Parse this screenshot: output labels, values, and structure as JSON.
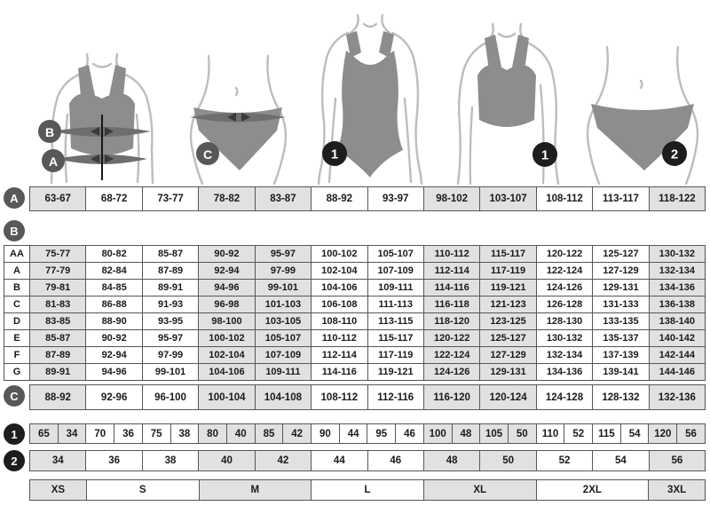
{
  "colors": {
    "cell_shaded": "#e1e1e1",
    "table_border": "#565656",
    "circle_gray": "#58585a",
    "circle_black": "#1d1d1f",
    "garment_gray": "#8d8d8d",
    "body_outline": "#bdbdbd"
  },
  "figures": {
    "bra_measured": {
      "bust_label": "B",
      "underbust_label": "A"
    },
    "panties_measured": {
      "label": "C"
    },
    "swimsuit": {
      "label": "1"
    },
    "bra": {
      "label": "1"
    },
    "panties": {
      "label": "2"
    }
  },
  "row_a": {
    "label": "A",
    "cells": [
      "63-67",
      "68-72",
      "73-77",
      "78-82",
      "83-87",
      "88-92",
      "93-97",
      "98-102",
      "103-107",
      "108-112",
      "113-117",
      "118-122"
    ]
  },
  "section_b": {
    "label": "B",
    "rows": [
      {
        "label": "AA",
        "cells": [
          "75-77",
          "80-82",
          "85-87",
          "90-92",
          "95-97",
          "100-102",
          "105-107",
          "110-112",
          "115-117",
          "120-122",
          "125-127",
          "130-132"
        ]
      },
      {
        "label": "A",
        "cells": [
          "77-79",
          "82-84",
          "87-89",
          "92-94",
          "97-99",
          "102-104",
          "107-109",
          "112-114",
          "117-119",
          "122-124",
          "127-129",
          "132-134"
        ]
      },
      {
        "label": "B",
        "cells": [
          "79-81",
          "84-85",
          "89-91",
          "94-96",
          "99-101",
          "104-106",
          "109-111",
          "114-116",
          "119-121",
          "124-126",
          "129-131",
          "134-136"
        ]
      },
      {
        "label": "C",
        "cells": [
          "81-83",
          "86-88",
          "91-93",
          "96-98",
          "101-103",
          "106-108",
          "111-113",
          "116-118",
          "121-123",
          "126-128",
          "131-133",
          "136-138"
        ]
      },
      {
        "label": "D",
        "cells": [
          "83-85",
          "88-90",
          "93-95",
          "98-100",
          "103-105",
          "108-110",
          "113-115",
          "118-120",
          "123-125",
          "128-130",
          "133-135",
          "138-140"
        ]
      },
      {
        "label": "E",
        "cells": [
          "85-87",
          "90-92",
          "95-97",
          "100-102",
          "105-107",
          "110-112",
          "115-117",
          "120-122",
          "125-127",
          "130-132",
          "135-137",
          "140-142"
        ]
      },
      {
        "label": "F",
        "cells": [
          "87-89",
          "92-94",
          "97-99",
          "102-104",
          "107-109",
          "112-114",
          "117-119",
          "122-124",
          "127-129",
          "132-134",
          "137-139",
          "142-144"
        ]
      },
      {
        "label": "G",
        "cells": [
          "89-91",
          "94-96",
          "99-101",
          "104-106",
          "109-111",
          "114-116",
          "119-121",
          "124-126",
          "129-131",
          "134-136",
          "139-141",
          "144-146"
        ]
      }
    ]
  },
  "row_c": {
    "label": "C",
    "cells": [
      "88-92",
      "92-96",
      "96-100",
      "100-104",
      "104-108",
      "108-112",
      "112-116",
      "116-120",
      "120-124",
      "124-128",
      "128-132",
      "132-136"
    ]
  },
  "row_1": {
    "label": "1",
    "cells": [
      "65",
      "34",
      "70",
      "36",
      "75",
      "38",
      "80",
      "40",
      "85",
      "42",
      "90",
      "44",
      "95",
      "46",
      "100",
      "48",
      "105",
      "50",
      "110",
      "52",
      "115",
      "54",
      "120",
      "56"
    ]
  },
  "row_2": {
    "label": "2",
    "cells": [
      "34",
      "36",
      "38",
      "40",
      "42",
      "44",
      "46",
      "48",
      "50",
      "52",
      "54",
      "56"
    ]
  },
  "sizes": {
    "cells": [
      "XS",
      "S",
      "M",
      "L",
      "XL",
      "2XL",
      "3XL"
    ],
    "spans": [
      1,
      2,
      2,
      2,
      2,
      2,
      1
    ]
  }
}
